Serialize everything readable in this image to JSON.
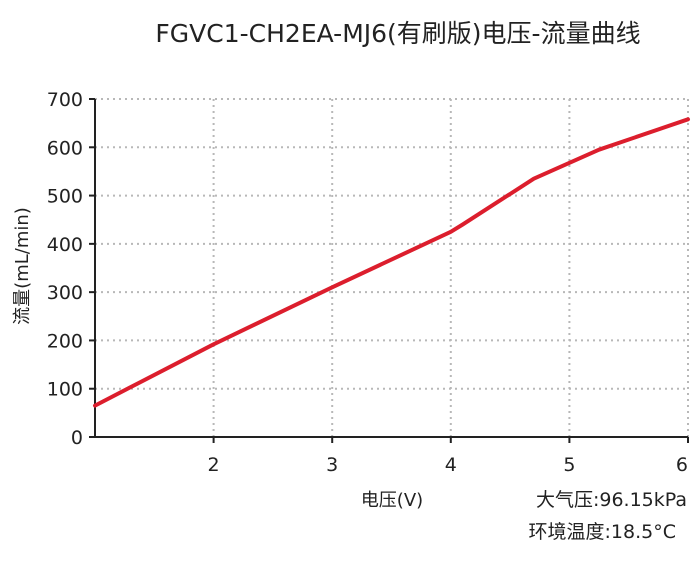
{
  "chart_data": {
    "type": "line",
    "title": "FGVC1-CH2EA-MJ6(有刷版)电压-流量曲线",
    "xlabel": "电压(V)",
    "ylabel": "流量(mL/min)",
    "xlim": [
      1,
      6
    ],
    "ylim": [
      0,
      700
    ],
    "xticks": [
      2,
      3,
      4,
      5,
      6
    ],
    "yticks": [
      0,
      100,
      200,
      300,
      400,
      500,
      600,
      700
    ],
    "grid": true,
    "series": [
      {
        "color": "#dc1e2d",
        "x": [
          1,
          2,
          3,
          4,
          4.1,
          4.7,
          5.25,
          6
        ],
        "y": [
          65,
          192,
          310,
          425,
          440,
          535,
          595,
          658
        ]
      }
    ],
    "annotations": [
      "大气压:96.15kPa",
      "环境温度:18.5°C"
    ]
  }
}
